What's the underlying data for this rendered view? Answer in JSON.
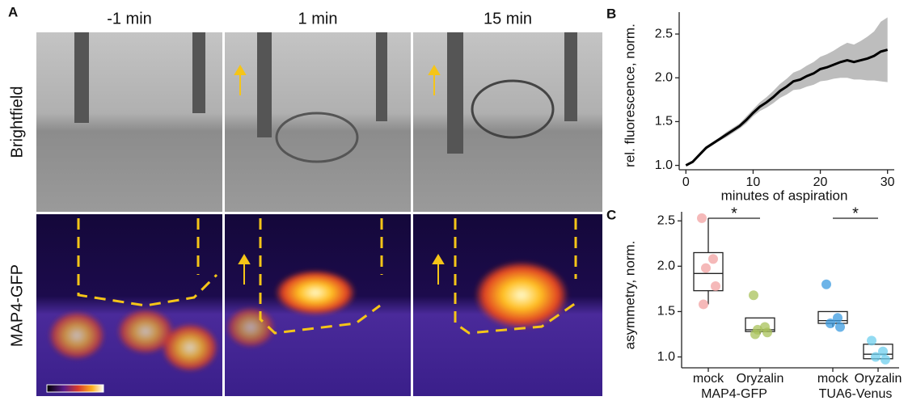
{
  "panel_a": {
    "label": "A",
    "columns": [
      "-1 min",
      "1 min",
      "15 min"
    ],
    "rows": [
      "Brightfield",
      "MAP4-GFP"
    ]
  },
  "chart_data": [
    {
      "type": "band-line",
      "label": "B",
      "xlabel": "minutes of aspiration",
      "ylabel": "rel. fluorescence, norm.",
      "x": [
        0,
        1,
        2,
        3,
        4,
        5,
        6,
        7,
        8,
        9,
        10,
        11,
        12,
        13,
        14,
        15,
        16,
        17,
        18,
        19,
        20,
        21,
        22,
        23,
        24,
        25,
        26,
        27,
        28,
        29,
        30
      ],
      "values": [
        1.0,
        1.04,
        1.12,
        1.2,
        1.25,
        1.3,
        1.35,
        1.4,
        1.45,
        1.52,
        1.6,
        1.67,
        1.72,
        1.78,
        1.85,
        1.9,
        1.96,
        1.98,
        2.02,
        2.05,
        2.1,
        2.12,
        2.15,
        2.18,
        2.2,
        2.18,
        2.2,
        2.22,
        2.25,
        2.3,
        2.32
      ],
      "lower": [
        0.99,
        1.03,
        1.1,
        1.18,
        1.23,
        1.28,
        1.32,
        1.37,
        1.42,
        1.48,
        1.56,
        1.62,
        1.66,
        1.71,
        1.77,
        1.81,
        1.86,
        1.87,
        1.9,
        1.92,
        1.96,
        1.97,
        1.99,
        2.0,
        2.0,
        1.98,
        1.98,
        1.97,
        1.97,
        1.96,
        1.95
      ],
      "upper": [
        1.01,
        1.05,
        1.14,
        1.22,
        1.27,
        1.32,
        1.38,
        1.43,
        1.48,
        1.56,
        1.64,
        1.72,
        1.78,
        1.85,
        1.93,
        1.99,
        2.06,
        2.09,
        2.14,
        2.18,
        2.24,
        2.27,
        2.31,
        2.36,
        2.4,
        2.38,
        2.42,
        2.47,
        2.53,
        2.64,
        2.69
      ],
      "color": "#000000",
      "band_color": "#bdbdbd",
      "xlim": [
        -1,
        31
      ],
      "xticks": [
        0,
        10,
        20,
        30
      ],
      "ylim": [
        0.95,
        2.75
      ],
      "yticks": [
        {
          "value": 1,
          "label": "1.0"
        },
        1.5,
        {
          "value": 2,
          "label": "2.0"
        },
        2.5
      ]
    },
    {
      "type": "box",
      "label": "C",
      "ylabel": "asymmetry, norm.",
      "categories": [
        "mock",
        "Oryzalin",
        "mock",
        "Oryzalin"
      ],
      "groups": [
        "MAP4-GFP",
        "TUA6-Venus"
      ],
      "boxes": [
        {
          "low": 1.58,
          "q1": 1.73,
          "median": 1.92,
          "q3": 2.15,
          "high": 2.53,
          "points": [
            2.53,
            2.08,
            1.98,
            1.78,
            1.58
          ],
          "color": "#f2a1a1"
        },
        {
          "low": 1.25,
          "q1": 1.28,
          "median": 1.3,
          "q3": 1.43,
          "high": 1.43,
          "points": [
            1.68,
            1.33,
            1.3,
            1.27,
            1.25
          ],
          "color": "#a8c25a"
        },
        {
          "low": 1.33,
          "q1": 1.37,
          "median": 1.4,
          "q3": 1.5,
          "high": 1.5,
          "points": [
            1.8,
            1.43,
            1.37,
            1.33
          ],
          "color": "#3b9be0"
        },
        {
          "low": 0.97,
          "q1": 0.98,
          "median": 1.03,
          "q3": 1.14,
          "high": 1.14,
          "points": [
            1.18,
            1.06,
            1.0,
            0.97
          ],
          "color": "#6fcfee"
        }
      ],
      "significance": [
        {
          "label": "*",
          "groups": [
            0,
            1
          ]
        },
        {
          "label": "*",
          "groups": [
            2,
            3
          ]
        }
      ],
      "ylim": [
        0.88,
        2.6
      ],
      "yticks": [
        {
          "value": 1,
          "label": "1.0"
        },
        1.5,
        {
          "value": 2,
          "label": "2.0"
        },
        2.5
      ]
    }
  ]
}
